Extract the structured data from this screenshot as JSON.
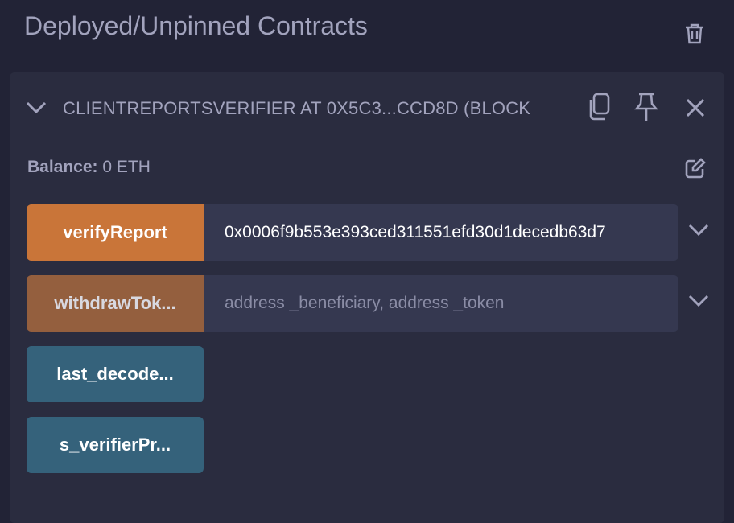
{
  "section_title": "Deployed/Unpinned Contracts",
  "contract": {
    "header": "CLIENTREPORTSVERIFIER AT 0X5C3...CCD8D (BLOCK",
    "balance_label": "Balance:",
    "balance_value": "0 ETH",
    "functions": [
      {
        "label": "verifyReport",
        "input_value": "0x0006f9b553e393ced311551efd30d1decedb63d7",
        "placeholder": "",
        "color": "#c97539"
      },
      {
        "label": "withdrawTok...",
        "input_value": "",
        "placeholder": "address _beneficiary, address _token",
        "color": "#945f3e"
      },
      {
        "label": "last_decode...",
        "color": "#35627b"
      },
      {
        "label": "s_verifierPr...",
        "color": "#35627b"
      }
    ]
  },
  "icons": [
    "trash-icon",
    "chevron-down-icon",
    "copy-icon",
    "pin-icon",
    "close-icon",
    "edit-icon"
  ]
}
